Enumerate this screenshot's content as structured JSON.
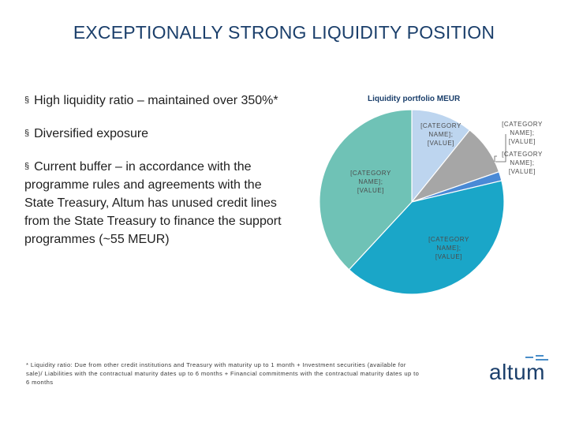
{
  "slide": {
    "title": "EXCEPTIONALLY STRONG LIQUIDITY POSITION",
    "bullets": [
      "High liquidity ratio – maintained over 350%*",
      "Diversified exposure",
      "Current buffer – in accordance with the programme rules and agreements with the State Treasury, Altum has unused credit lines from the State Treasury to finance the support programmes (~55 MEUR)"
    ],
    "bullet_mark": "§",
    "footnote": "* Liquidity ratio: Due from other credit institutions and Treasury with maturity up to 1 month + Investment securities (available for sale)/ Liabilities with the contractual maturity dates up to 6 months + Financial commitments with the contractual maturity dates up to 6 months",
    "logo": "altum"
  },
  "chart_data": {
    "type": "pie",
    "title": "Liquidity portfolio MEUR",
    "slices": [
      {
        "label": "[CATEGORY NAME]; [VALUE]",
        "value": 10.8,
        "color": "#bdd5ef"
      },
      {
        "label": "[CATEGORY NAME]; [VALUE]",
        "value": 8.9,
        "color": "#a6a6a6"
      },
      {
        "label": "[CATEGORY NAME]; [VALUE]",
        "value": 1.6,
        "color": "#4a8ad6"
      },
      {
        "label": "[CATEGORY NAME]; [VALUE]",
        "value": 40.6,
        "color": "#1aa6c8"
      },
      {
        "label": "[CATEGORY NAME]; [VALUE]",
        "value": 38.1,
        "color": "#6fc2b6"
      }
    ],
    "start_angle_deg": 0,
    "direction": "clockwise"
  }
}
